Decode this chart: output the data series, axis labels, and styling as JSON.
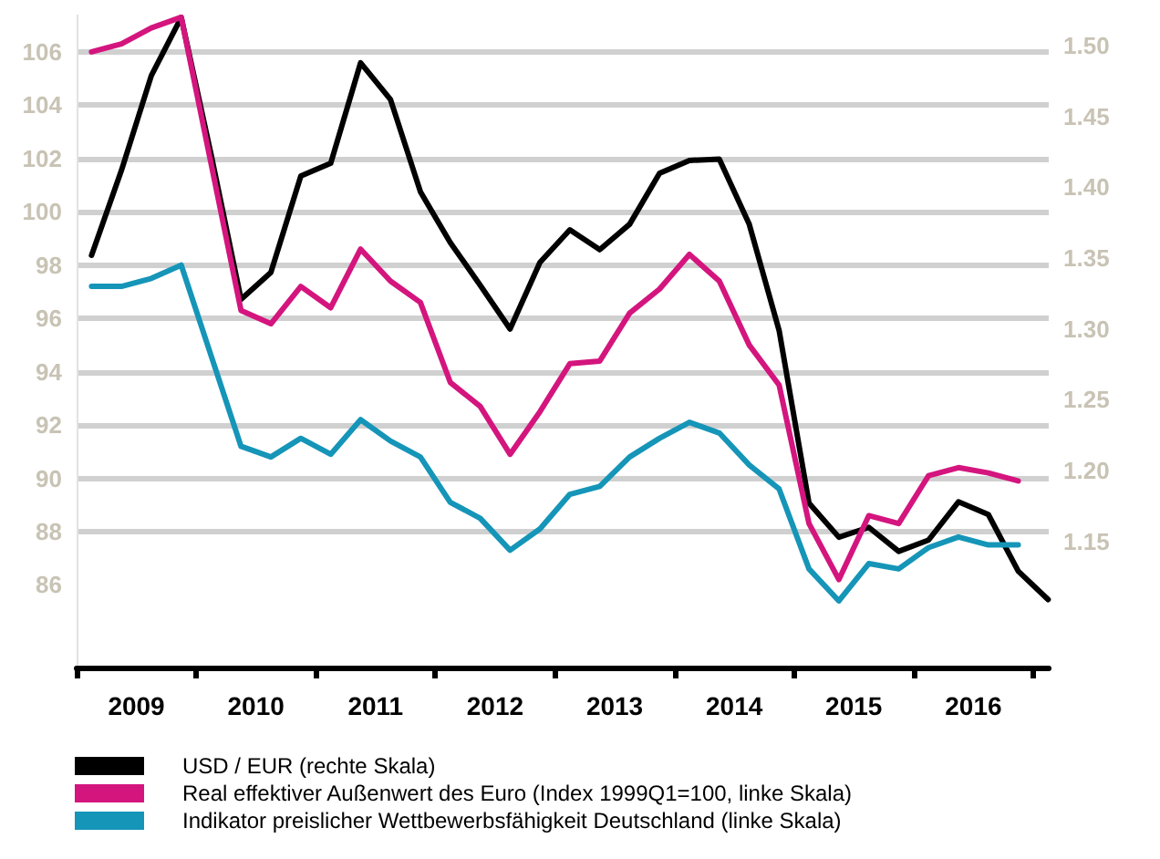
{
  "chart_data": {
    "type": "line",
    "legend": "bottom left",
    "grid": "y",
    "marker": "none",
    "line_style": "solid",
    "x": [
      2009.125,
      2009.375,
      2009.625,
      2009.875,
      2010.125,
      2010.375,
      2010.625,
      2010.875,
      2011.125,
      2011.375,
      2011.625,
      2011.875,
      2012.125,
      2012.375,
      2012.625,
      2012.875,
      2013.125,
      2013.375,
      2013.625,
      2013.875,
      2014.125,
      2014.375,
      2014.625,
      2014.875,
      2015.125,
      2015.375,
      2015.625,
      2015.875,
      2016.125,
      2016.375,
      2016.625,
      2016.875,
      2017.125
    ],
    "xlim": [
      2009,
      2017.13
    ],
    "xticks": [
      {
        "value": 2009,
        "label": null
      },
      {
        "value": 2010,
        "label": null
      },
      {
        "value": 2011,
        "label": null
      },
      {
        "value": 2012,
        "label": null
      },
      {
        "value": 2013,
        "label": null
      },
      {
        "value": 2014,
        "label": null
      },
      {
        "value": 2015,
        "label": null
      },
      {
        "value": 2016,
        "label": null
      },
      {
        "value": 2017,
        "label": null
      },
      {
        "value": 2009.5,
        "label": "2009"
      },
      {
        "value": 2010.5,
        "label": "2010"
      },
      {
        "value": 2011.5,
        "label": "2011"
      },
      {
        "value": 2012.5,
        "label": "2012"
      },
      {
        "value": 2013.5,
        "label": "2013"
      },
      {
        "value": 2014.5,
        "label": "2014"
      },
      {
        "value": 2015.5,
        "label": "2015"
      },
      {
        "value": 2016.5,
        "label": "2016"
      }
    ],
    "ylim": [
      82.9,
      107.4
    ],
    "yticks": [
      86,
      88,
      90,
      92,
      94,
      96,
      98,
      100,
      102,
      104,
      106
    ],
    "y2lim": [
      1.061,
      1.522
    ],
    "y2ticks": [
      {
        "value": 1.15,
        "label": "1.15"
      },
      {
        "value": 1.2,
        "label": "1.20"
      },
      {
        "value": 1.25,
        "label": "1.25"
      },
      {
        "value": 1.3,
        "label": "1.30"
      },
      {
        "value": 1.35,
        "label": "1.35"
      },
      {
        "value": 1.4,
        "label": "1.40"
      },
      {
        "value": 1.45,
        "label": "1.45"
      },
      {
        "value": 1.5,
        "label": "1.50"
      }
    ],
    "series": [
      {
        "name": "USD / EUR (rechte Skala)",
        "color": "#000000",
        "axis": "y2",
        "values": [
          1.352,
          1.412,
          1.479,
          1.52,
          1.423,
          1.321,
          1.34,
          1.408,
          1.417,
          1.488,
          1.462,
          1.397,
          1.361,
          1.331,
          1.3,
          1.347,
          1.37,
          1.356,
          1.374,
          1.41,
          1.419,
          1.42,
          1.374,
          1.299,
          1.177,
          1.153,
          1.16,
          1.143,
          1.151,
          1.178,
          1.169,
          1.129,
          1.109
        ]
      },
      {
        "name": "Real effektiver Außenwert des Euro (Index 1999Q1=100, linke Skala)",
        "color": "#d4157e",
        "values": [
          106.0,
          106.3,
          106.9,
          107.3,
          101.8,
          96.3,
          95.8,
          97.2,
          96.4,
          98.6,
          97.4,
          96.6,
          93.6,
          92.7,
          90.9,
          92.5,
          94.3,
          94.4,
          96.2,
          97.1,
          98.4,
          97.4,
          95.0,
          93.5,
          88.3,
          86.2,
          88.6,
          88.3,
          90.1,
          90.4,
          90.2,
          89.9,
          null
        ]
      },
      {
        "name": "Indikator preislicher Wettbewerbsfähigkeit Deutschland (linke Skala)",
        "color": "#1595b8",
        "values": [
          97.2,
          97.2,
          97.5,
          98.0,
          94.6,
          91.2,
          90.8,
          91.5,
          90.9,
          92.2,
          91.4,
          90.8,
          89.1,
          88.5,
          87.3,
          88.1,
          89.4,
          89.7,
          90.8,
          91.5,
          92.1,
          91.7,
          90.5,
          89.6,
          86.6,
          85.4,
          86.8,
          86.6,
          87.4,
          87.8,
          87.5,
          87.5,
          null
        ]
      }
    ]
  }
}
